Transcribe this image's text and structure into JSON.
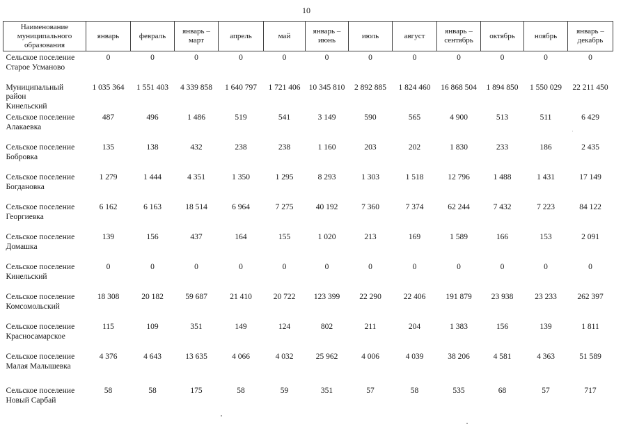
{
  "page": {
    "number": "10"
  },
  "table": {
    "name_header": "Наименование\nмуниципального\nобразования",
    "columns": [
      "январь",
      "февраль",
      "январь –\nмарт",
      "апрель",
      "май",
      "январь –\nиюнь",
      "июль",
      "август",
      "январь –\nсентябрь",
      "октябрь",
      "ноябрь",
      "январь –\nдекабрь"
    ],
    "rows": [
      {
        "name": "Сельское поселение\nСтарое Усманово",
        "values": [
          "0",
          "0",
          "0",
          "0",
          "0",
          "0",
          "0",
          "0",
          "0",
          "0",
          "0",
          "0"
        ]
      },
      {
        "name": "Муниципальный район\nКинельский",
        "values": [
          "1 035 364",
          "1 551 403",
          "4 339 858",
          "1 640 797",
          "1 721 406",
          "10 345 810",
          "2 892 885",
          "1 824 460",
          "16 868 504",
          "1 894 850",
          "1 550 029",
          "22 211 450"
        ]
      },
      {
        "name": "Сельское поселение\nАлакаевка",
        "values": [
          "487",
          "496",
          "1 486",
          "519",
          "541",
          "3 149",
          "590",
          "565",
          "4 900",
          "513",
          "511",
          "6 429"
        ]
      },
      {
        "name": "Сельское поселение\nБобровка",
        "values": [
          "135",
          "138",
          "432",
          "238",
          "238",
          "1 160",
          "203",
          "202",
          "1 830",
          "233",
          "186",
          "2 435"
        ]
      },
      {
        "name": "Сельское поселение\nБогдановка",
        "values": [
          "1 279",
          "1 444",
          "4 351",
          "1 350",
          "1 295",
          "8 293",
          "1 303",
          "1 518",
          "12 796",
          "1 488",
          "1 431",
          "17 149"
        ]
      },
      {
        "name": "Сельское поселение\nГеоргиевка",
        "values": [
          "6 162",
          "6 163",
          "18 514",
          "6 964",
          "7 275",
          "40 192",
          "7 360",
          "7 374",
          "62 244",
          "7 432",
          "7 223",
          "84 122"
        ]
      },
      {
        "name": "Сельское поселение\nДомашка",
        "values": [
          "139",
          "156",
          "437",
          "164",
          "155",
          "1 020",
          "213",
          "169",
          "1 589",
          "166",
          "153",
          "2 091"
        ]
      },
      {
        "name": "Сельское поселение\nКинельский",
        "values": [
          "0",
          "0",
          "0",
          "0",
          "0",
          "0",
          "0",
          "0",
          "0",
          "0",
          "0",
          "0"
        ]
      },
      {
        "name": "Сельское поселение\nКомсомольский",
        "values": [
          "18 308",
          "20 182",
          "59 687",
          "21 410",
          "20 722",
          "123 399",
          "22 290",
          "22 406",
          "191 879",
          "23 938",
          "23 233",
          "262 397"
        ]
      },
      {
        "name": "Сельское поселение\nКрасносамарское",
        "values": [
          "115",
          "109",
          "351",
          "149",
          "124",
          "802",
          "211",
          "204",
          "1 383",
          "156",
          "139",
          "1 811"
        ]
      },
      {
        "name": "Сельское поселение\nМалая Малышевка",
        "values": [
          "4 376",
          "4 643",
          "13 635",
          "4 066",
          "4 032",
          "25 962",
          "4 006",
          "4 039",
          "38 206",
          "4 581",
          "4 363",
          "51 589"
        ]
      },
      {
        "name": "Сельское поселение\nНовый Сарбай",
        "values": [
          "58",
          "58",
          "175",
          "58",
          "59",
          "351",
          "57",
          "58",
          "535",
          "68",
          "57",
          "717"
        ]
      }
    ]
  }
}
